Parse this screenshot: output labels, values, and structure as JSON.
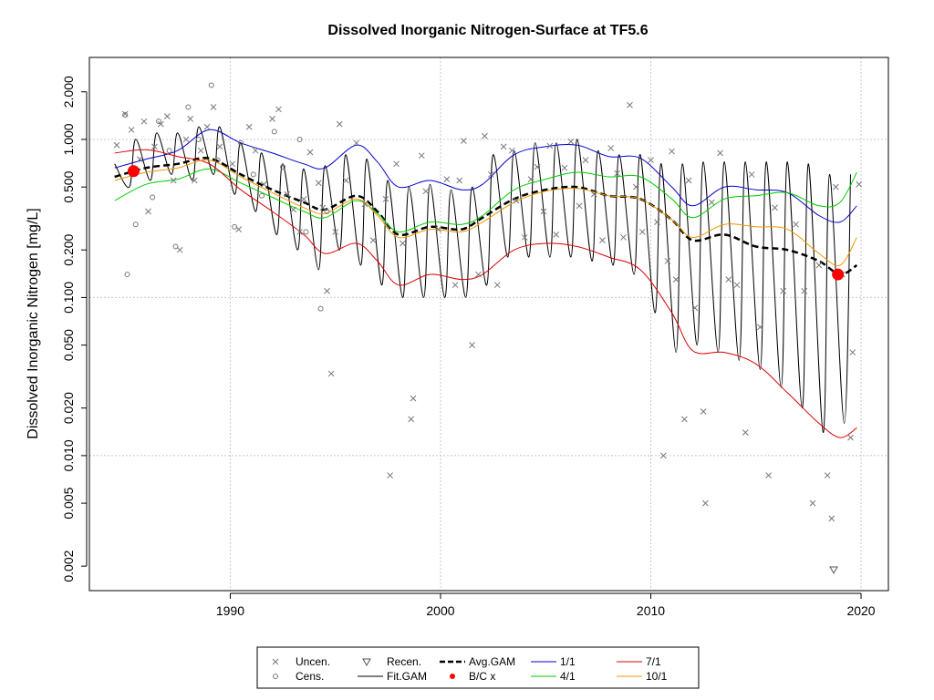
{
  "chart_data": {
    "type": "line",
    "title": "Dissolved Inorganic Nitrogen-Surface at TF5.6",
    "xlabel": "",
    "ylabel": "Dissolved Inorganic Nitrogen [mg/L]",
    "y_scale": "log",
    "xlim": [
      1983.3,
      2021.3
    ],
    "ylim": [
      0.0014,
      3.3
    ],
    "x_ticks": [
      1990,
      2000,
      2010,
      2020
    ],
    "y_ticks": [
      0.002,
      0.005,
      0.01,
      0.02,
      0.05,
      0.1,
      0.2,
      0.5,
      1.0,
      2.0
    ],
    "y_tick_labels": [
      "0.002",
      "0.005",
      "0.010",
      "0.020",
      "0.050",
      "0.100",
      "0.200",
      "0.500",
      "1.000",
      "2.000"
    ],
    "grid": true,
    "legend_position": "bottom",
    "legend": [
      {
        "label": "Uncen.",
        "symbol": "x",
        "color": "#777777"
      },
      {
        "label": "Cens.",
        "symbol": "o",
        "color": "#777777"
      },
      {
        "label": "Recen.",
        "symbol": "triangle-down",
        "color": "#555555"
      },
      {
        "label": "Fit.GAM",
        "symbol": "line",
        "color": "#000000"
      },
      {
        "label": "Avg.GAM",
        "symbol": "dashed-line",
        "color": "#000000"
      },
      {
        "label": "B/C x",
        "symbol": "dot",
        "color": "#ff0000"
      },
      {
        "label": "1/1",
        "symbol": "line",
        "color": "#0000cc"
      },
      {
        "label": "4/1",
        "symbol": "line",
        "color": "#00cc00"
      },
      {
        "label": "7/1",
        "symbol": "line",
        "color": "#dd0000"
      },
      {
        "label": "10/1",
        "symbol": "line",
        "color": "#ee9900"
      }
    ],
    "series": [
      {
        "name": "Avg.GAM",
        "color": "#000000",
        "dash": true,
        "x": [
          1984.5,
          1986,
          1987.5,
          1989,
          1990.5,
          1992,
          1993.5,
          1994.5,
          1996,
          1997,
          1998,
          1999.5,
          2001,
          2002,
          2003.5,
          2005,
          2006.5,
          2008,
          2009.5,
          2011,
          2012,
          2013.5,
          2015,
          2016.5,
          2018,
          2019,
          2019.8
        ],
        "y": [
          0.58,
          0.66,
          0.7,
          0.76,
          0.6,
          0.48,
          0.4,
          0.36,
          0.44,
          0.35,
          0.25,
          0.28,
          0.27,
          0.32,
          0.42,
          0.48,
          0.5,
          0.44,
          0.42,
          0.31,
          0.23,
          0.25,
          0.21,
          0.2,
          0.17,
          0.14,
          0.16
        ]
      },
      {
        "name": "1/1",
        "color": "#0000cc",
        "x": [
          1984.5,
          1986,
          1987.5,
          1989,
          1990.5,
          1992,
          1993.5,
          1994.5,
          1996,
          1997,
          1998,
          1999.5,
          2001,
          2002,
          2003.5,
          2005,
          2006.5,
          2008,
          2009.5,
          2011,
          2012,
          2013.5,
          2015,
          2016.5,
          2018,
          2019,
          2019.8
        ],
        "y": [
          0.66,
          0.75,
          0.85,
          1.15,
          0.95,
          0.82,
          0.7,
          0.66,
          0.92,
          0.72,
          0.5,
          0.55,
          0.48,
          0.52,
          0.8,
          0.9,
          0.92,
          0.78,
          0.76,
          0.5,
          0.38,
          0.5,
          0.48,
          0.46,
          0.33,
          0.3,
          0.38
        ]
      },
      {
        "name": "4/1",
        "color": "#00cc00",
        "x": [
          1984.5,
          1986,
          1987.5,
          1989,
          1990.5,
          1992,
          1993.5,
          1994.5,
          1996,
          1997,
          1998,
          1999.5,
          2001,
          2002,
          2003.5,
          2005,
          2006.5,
          2008,
          2009.5,
          2011,
          2012,
          2013.5,
          2015,
          2016.5,
          2018,
          2019,
          2019.8
        ],
        "y": [
          0.41,
          0.52,
          0.56,
          0.65,
          0.53,
          0.43,
          0.35,
          0.32,
          0.41,
          0.34,
          0.26,
          0.3,
          0.29,
          0.33,
          0.48,
          0.56,
          0.62,
          0.58,
          0.58,
          0.42,
          0.32,
          0.42,
          0.44,
          0.46,
          0.38,
          0.4,
          0.62
        ]
      },
      {
        "name": "7/1",
        "color": "#dd0000",
        "x": [
          1984.5,
          1986,
          1987.5,
          1989,
          1990.5,
          1992,
          1993.5,
          1994.5,
          1996,
          1997,
          1998,
          1999.5,
          2001,
          2002,
          2003.5,
          2005,
          2006.5,
          2008,
          2009.5,
          2011,
          2012,
          2013.5,
          2015,
          2016.5,
          2018,
          2019,
          2019.8
        ],
        "y": [
          0.82,
          0.86,
          0.78,
          0.7,
          0.48,
          0.35,
          0.25,
          0.19,
          0.22,
          0.17,
          0.12,
          0.14,
          0.13,
          0.14,
          0.2,
          0.22,
          0.21,
          0.18,
          0.15,
          0.08,
          0.046,
          0.045,
          0.038,
          0.025,
          0.016,
          0.013,
          0.015
        ]
      },
      {
        "name": "10/1",
        "color": "#ee9900",
        "x": [
          1984.5,
          1986,
          1987.5,
          1989,
          1990.5,
          1992,
          1993.5,
          1994.5,
          1996,
          1997,
          1998,
          1999.5,
          2001,
          2002,
          2003.5,
          2005,
          2006.5,
          2008,
          2009.5,
          2011,
          2012,
          2013.5,
          2015,
          2016.5,
          2018,
          2019,
          2019.8
        ],
        "y": [
          0.55,
          0.62,
          0.66,
          0.74,
          0.58,
          0.46,
          0.37,
          0.34,
          0.42,
          0.33,
          0.24,
          0.27,
          0.26,
          0.3,
          0.4,
          0.47,
          0.49,
          0.44,
          0.42,
          0.31,
          0.24,
          0.29,
          0.28,
          0.27,
          0.19,
          0.16,
          0.24
        ]
      }
    ],
    "fit_gam": {
      "name": "Fit.GAM",
      "color": "#000000",
      "peak_x": [
        1984.5,
        1985.5,
        1986.5,
        1987.5,
        1988.5,
        1989.5,
        1990.5,
        1991.5,
        1992.5,
        1993.5,
        1994.5,
        1995.5,
        1996.5,
        1997.5,
        1998.5,
        1999.5,
        2000.5,
        2001.5,
        2002.5,
        2003.5,
        2004.5,
        2005.5,
        2006.5,
        2007.5,
        2008.5,
        2009.5,
        2010.5,
        2011.5,
        2012.5,
        2013.5,
        2014.5,
        2015.5,
        2016.5,
        2017.5,
        2018.5,
        2019.5
      ],
      "peak_y": [
        0.7,
        1.0,
        1.1,
        1.1,
        1.2,
        1.2,
        0.95,
        0.82,
        0.7,
        0.65,
        0.68,
        0.8,
        0.75,
        0.55,
        0.5,
        0.52,
        0.48,
        0.5,
        0.8,
        0.85,
        0.95,
        0.95,
        1.0,
        0.85,
        0.8,
        0.8,
        0.7,
        0.7,
        0.72,
        0.72,
        0.72,
        0.72,
        0.72,
        0.7,
        0.6,
        0.6
      ],
      "trough_x": [
        1985.2,
        1986.2,
        1987.2,
        1988.2,
        1989.2,
        1990.2,
        1991.2,
        1992.2,
        1993.2,
        1994.2,
        1995.2,
        1996.2,
        1997.2,
        1998.2,
        1999.2,
        2000.2,
        2001.2,
        2002.2,
        2003.2,
        2004.2,
        2005.2,
        2006.2,
        2007.2,
        2008.2,
        2009.2,
        2010.2,
        2011.2,
        2012.2,
        2013.2,
        2014.2,
        2015.2,
        2016.2,
        2017.2,
        2018.2,
        2019.2
      ],
      "trough_y": [
        0.5,
        0.55,
        0.6,
        0.55,
        0.6,
        0.45,
        0.35,
        0.25,
        0.2,
        0.15,
        0.2,
        0.16,
        0.12,
        0.1,
        0.1,
        0.1,
        0.1,
        0.12,
        0.18,
        0.18,
        0.18,
        0.18,
        0.17,
        0.16,
        0.14,
        0.08,
        0.045,
        0.05,
        0.045,
        0.04,
        0.035,
        0.027,
        0.02,
        0.014,
        0.016
      ]
    },
    "bc_points": [
      {
        "x": 1985.4,
        "y": 0.63
      },
      {
        "x": 2018.9,
        "y": 0.14
      }
    ],
    "uncensored_points": [
      [
        1984.6,
        0.92
      ],
      [
        1985.0,
        1.45
      ],
      [
        1985.3,
        1.15
      ],
      [
        1985.7,
        0.75
      ],
      [
        1985.9,
        1.3
      ],
      [
        1986.1,
        0.35
      ],
      [
        1986.4,
        0.9
      ],
      [
        1986.7,
        1.25
      ],
      [
        1987.0,
        1.4
      ],
      [
        1987.3,
        0.55
      ],
      [
        1987.6,
        0.2
      ],
      [
        1987.9,
        1.0
      ],
      [
        1988.1,
        1.35
      ],
      [
        1988.3,
        0.55
      ],
      [
        1988.6,
        0.85
      ],
      [
        1988.9,
        1.2
      ],
      [
        1989.2,
        1.6
      ],
      [
        1989.5,
        0.9
      ],
      [
        1990.1,
        0.7
      ],
      [
        1990.4,
        0.27
      ],
      [
        1990.9,
        1.2
      ],
      [
        1991.2,
        0.85
      ],
      [
        1991.6,
        0.52
      ],
      [
        1992.0,
        1.35
      ],
      [
        1992.3,
        1.55
      ],
      [
        1992.7,
        0.45
      ],
      [
        1993.0,
        0.36
      ],
      [
        1993.3,
        0.26
      ],
      [
        1993.5,
        0.42
      ],
      [
        1993.8,
        0.83
      ],
      [
        1994.2,
        0.53
      ],
      [
        1994.4,
        0.37
      ],
      [
        1994.6,
        0.11
      ],
      [
        1994.8,
        0.033
      ],
      [
        1995.0,
        0.26
      ],
      [
        1995.2,
        1.25
      ],
      [
        1995.5,
        0.55
      ],
      [
        1996.0,
        0.95
      ],
      [
        1996.4,
        0.39
      ],
      [
        1996.8,
        0.23
      ],
      [
        1997.4,
        0.42
      ],
      [
        1997.6,
        0.0075
      ],
      [
        1997.9,
        0.7
      ],
      [
        1998.2,
        0.22
      ],
      [
        1998.6,
        0.017
      ],
      [
        1998.7,
        0.023
      ],
      [
        1999.1,
        0.79
      ],
      [
        1999.3,
        0.47
      ],
      [
        1999.9,
        0.27
      ],
      [
        2000.3,
        0.56
      ],
      [
        2000.7,
        0.12
      ],
      [
        2000.9,
        0.55
      ],
      [
        2001.1,
        0.98
      ],
      [
        2001.5,
        0.05
      ],
      [
        2001.8,
        0.14
      ],
      [
        2002.1,
        1.05
      ],
      [
        2002.4,
        0.6
      ],
      [
        2002.7,
        0.12
      ],
      [
        2003.0,
        0.9
      ],
      [
        2003.4,
        0.85
      ],
      [
        2003.6,
        0.41
      ],
      [
        2004.0,
        0.24
      ],
      [
        2004.3,
        0.56
      ],
      [
        2004.6,
        0.67
      ],
      [
        2004.9,
        0.35
      ],
      [
        2005.2,
        0.91
      ],
      [
        2005.5,
        0.25
      ],
      [
        2005.9,
        0.66
      ],
      [
        2006.2,
        0.97
      ],
      [
        2006.6,
        0.38
      ],
      [
        2006.9,
        0.74
      ],
      [
        2007.3,
        0.45
      ],
      [
        2007.7,
        0.23
      ],
      [
        2008.1,
        0.88
      ],
      [
        2008.4,
        0.61
      ],
      [
        2008.7,
        0.24
      ],
      [
        2009.0,
        1.65
      ],
      [
        2009.3,
        0.5
      ],
      [
        2009.6,
        0.26
      ],
      [
        2010.0,
        0.74
      ],
      [
        2010.3,
        0.3
      ],
      [
        2010.6,
        0.01
      ],
      [
        2010.8,
        0.17
      ],
      [
        2011.0,
        0.84
      ],
      [
        2011.2,
        0.13
      ],
      [
        2011.6,
        0.017
      ],
      [
        2011.8,
        0.55
      ],
      [
        2012.1,
        0.086
      ],
      [
        2012.5,
        0.019
      ],
      [
        2012.6,
        0.005
      ],
      [
        2012.9,
        0.4
      ],
      [
        2013.3,
        0.82
      ],
      [
        2013.7,
        0.13
      ],
      [
        2014.1,
        0.12
      ],
      [
        2014.5,
        0.014
      ],
      [
        2014.8,
        0.6
      ],
      [
        2015.2,
        0.065
      ],
      [
        2015.6,
        0.0075
      ],
      [
        2015.9,
        0.37
      ],
      [
        2016.3,
        0.11
      ],
      [
        2016.9,
        0.29
      ],
      [
        2017.3,
        0.11
      ],
      [
        2017.7,
        0.005
      ],
      [
        2018.0,
        0.16
      ],
      [
        2018.4,
        0.0075
      ],
      [
        2018.6,
        0.004
      ],
      [
        2018.8,
        0.5
      ],
      [
        2019.1,
        0.14
      ],
      [
        2019.5,
        0.013
      ],
      [
        2019.6,
        0.045
      ],
      [
        2019.9,
        0.52
      ]
    ],
    "censored_points": [
      [
        1985.0,
        1.43
      ],
      [
        1985.1,
        0.14
      ],
      [
        1985.5,
        0.29
      ],
      [
        1986.3,
        0.43
      ],
      [
        1986.6,
        1.3
      ],
      [
        1987.1,
        0.85
      ],
      [
        1987.4,
        0.21
      ],
      [
        1988.0,
        1.6
      ],
      [
        1988.5,
        1.0
      ],
      [
        1989.1,
        2.2
      ],
      [
        1989.4,
        0.74
      ],
      [
        1990.2,
        0.28
      ],
      [
        1990.5,
        0.95
      ],
      [
        1991.1,
        0.6
      ],
      [
        1991.5,
        0.44
      ],
      [
        1992.1,
        1.12
      ],
      [
        1992.5,
        0.67
      ],
      [
        1993.3,
        1.0
      ],
      [
        1993.6,
        0.26
      ],
      [
        1994.3,
        0.085
      ],
      [
        1994.6,
        0.35
      ]
    ],
    "recensored_points": [
      [
        2018.7,
        0.0019
      ]
    ]
  }
}
